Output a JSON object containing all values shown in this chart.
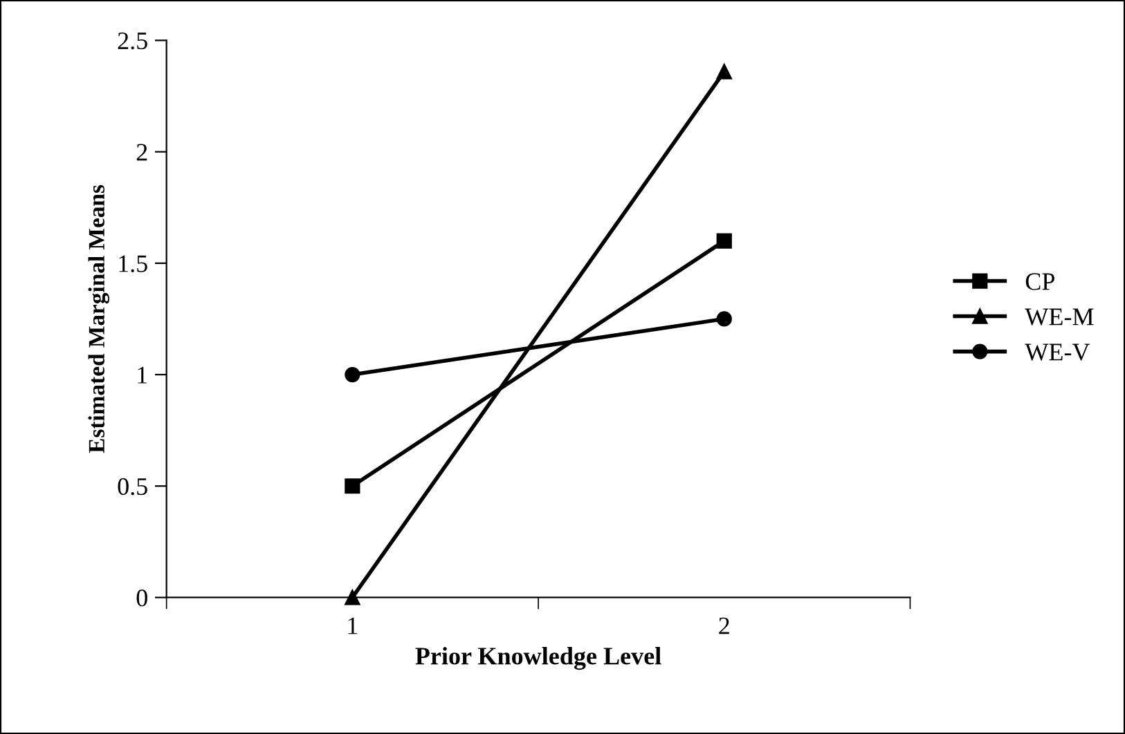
{
  "chart_data": {
    "type": "line",
    "xlabel": "Prior Knowledge Level",
    "ylabel": "Estimated Marginal Means",
    "categories": [
      "1",
      "2"
    ],
    "series": [
      {
        "name": "CP",
        "color": "#000000",
        "marker": "square",
        "values": [
          0.5,
          1.6
        ]
      },
      {
        "name": "WE-M",
        "color": "#000000",
        "marker": "triangle",
        "values": [
          0.0,
          2.36
        ]
      },
      {
        "name": "WE-V",
        "color": "#000000",
        "marker": "circle",
        "values": [
          1.0,
          1.25
        ]
      }
    ],
    "ylim": [
      0,
      2.5
    ],
    "yticks": [
      0,
      0.5,
      1,
      1.5,
      2,
      2.5
    ],
    "grid": false,
    "legend": "right",
    "line_style": "solid"
  }
}
